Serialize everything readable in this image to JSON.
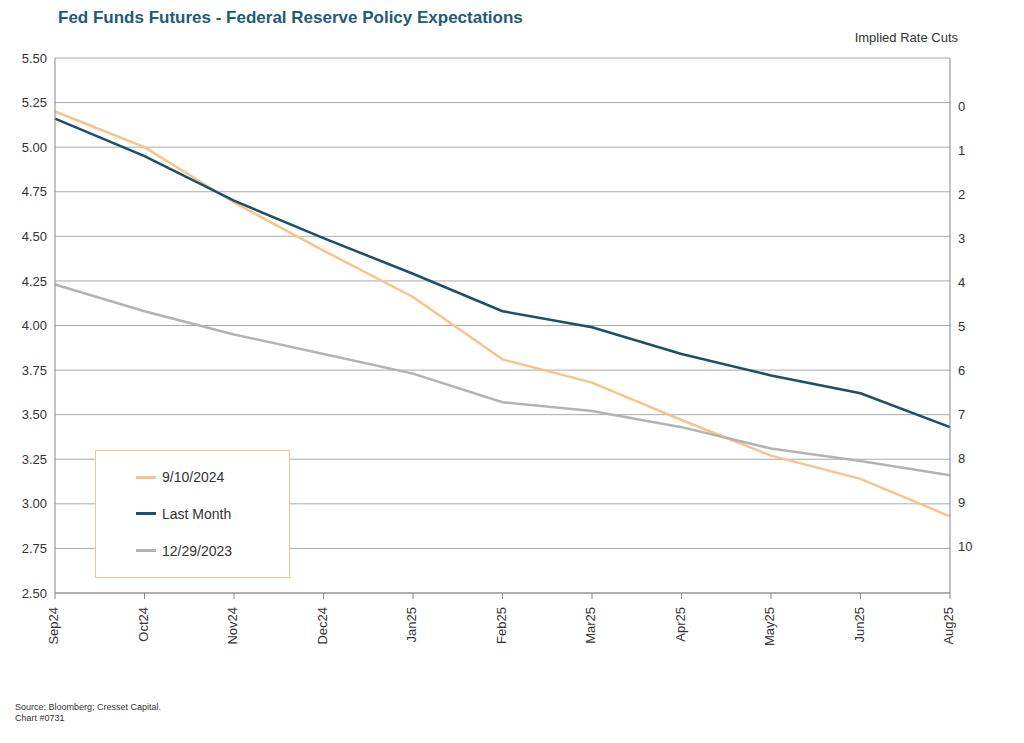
{
  "chart_data": {
    "type": "line",
    "title": "Fed Funds Futures - Federal Reserve Policy Expectations",
    "y2_label": "Implied Rate Cuts",
    "source": "Source: Bloomberg; Cresset Capital.",
    "chart_id": "Chart #0731",
    "categories": [
      "Sep24",
      "Oct24",
      "Nov24",
      "Dec24",
      "Jan25",
      "Feb25",
      "Mar25",
      "Apr25",
      "May25",
      "Jun25",
      "Aug25"
    ],
    "series": [
      {
        "name": "9/10/2024",
        "color": "#f9c48a",
        "values": [
          5.2,
          5.0,
          4.69,
          4.42,
          4.16,
          3.81,
          3.68,
          3.47,
          3.27,
          3.14,
          2.93
        ]
      },
      {
        "name": "Last Month",
        "color": "#1b4f6e",
        "values": [
          5.16,
          4.95,
          4.7,
          4.49,
          4.29,
          4.08,
          3.99,
          3.84,
          3.72,
          3.62,
          3.43
        ]
      },
      {
        "name": "12/29/2023",
        "color": "#b3b3b3",
        "values": [
          4.23,
          4.08,
          3.95,
          3.84,
          3.73,
          3.57,
          3.52,
          3.43,
          3.31,
          3.24,
          3.16
        ]
      }
    ],
    "ylim": [
      2.5,
      5.5
    ],
    "yticks": [
      {
        "value": 2.5,
        "label": "2.50"
      },
      {
        "value": 2.75,
        "label": "2.75"
      },
      {
        "value": 3,
        "label": "3.00"
      },
      {
        "value": 3.25,
        "label": "3.25"
      },
      {
        "value": 3.5,
        "label": "3.50"
      },
      {
        "value": 3.75,
        "label": "3.75"
      },
      {
        "value": 4,
        "label": "4.00"
      },
      {
        "value": 4.25,
        "label": "4.25"
      },
      {
        "value": 4.5,
        "label": "4.50"
      },
      {
        "value": 4.75,
        "label": "4.75"
      },
      {
        "value": 5,
        "label": "5.00"
      },
      {
        "value": 5.25,
        "label": "5.25"
      },
      {
        "value": 5.5,
        "label": "5.50"
      }
    ],
    "y2lim": [
      11.05,
      -1.1
    ],
    "y2ticks": [
      0,
      1,
      2,
      3,
      4,
      5,
      6,
      7,
      8,
      9,
      10
    ],
    "grid": true,
    "legend": "lower left"
  }
}
